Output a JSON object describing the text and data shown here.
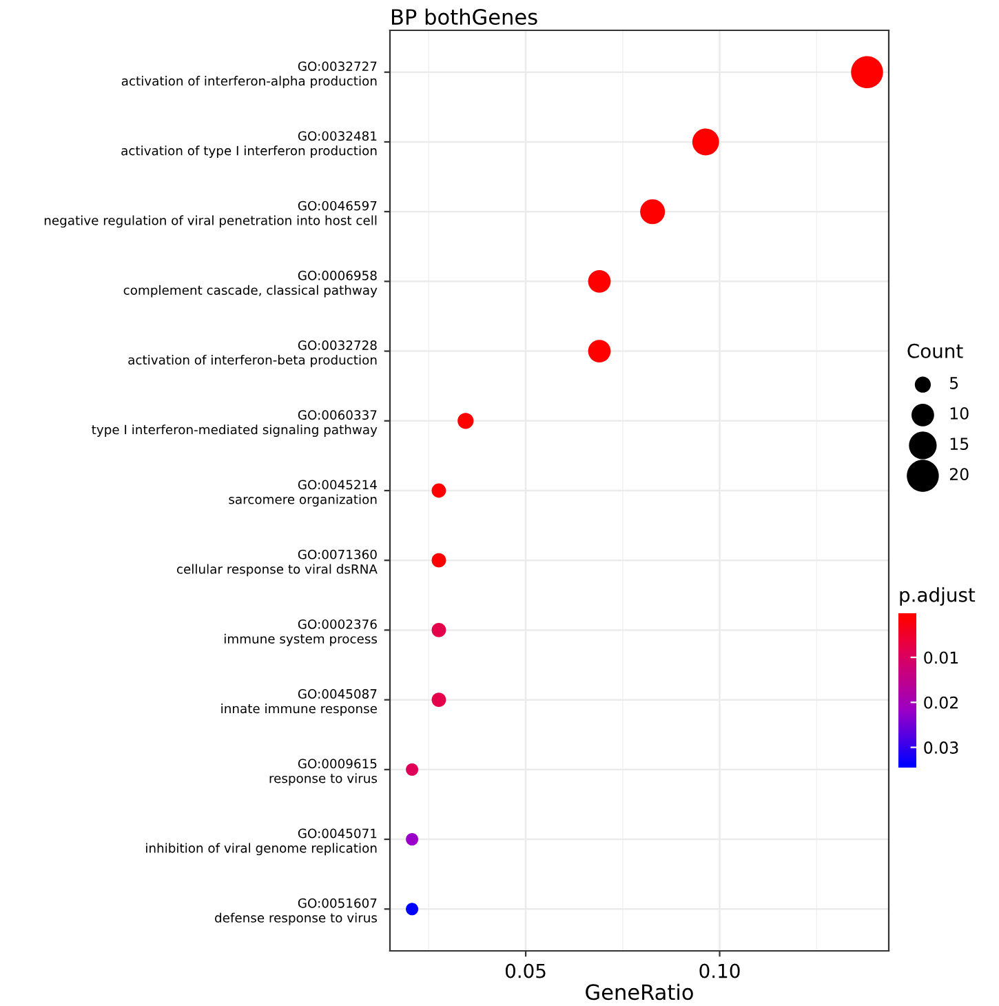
{
  "chart_data": {
    "type": "bubble",
    "orientation": "horizontal",
    "title": "BP bothGenes",
    "xlabel": "GeneRatio",
    "categories": [
      "GO:0032727\nactivation of interferon-alpha production",
      "GO:0032481\nactivation of type I interferon production",
      "GO:0046597\nnegative regulation of viral penetration into host cell",
      "GO:0006958\ncomplement cascade, classical pathway",
      "GO:0032728\nactivation of interferon-beta production",
      "GO:0060337\ntype I interferon-mediated signaling pathway",
      "GO:0045214\nsarcomere organization",
      "GO:0071360\ncellular response to viral dsRNA",
      "GO:0002376\nimmune system process",
      "GO:0045087\ninnate immune response",
      "GO:0009615\nresponse to virus",
      "GO:0045071\ninhibition of viral genome replication",
      "GO:0051607\ndefense response to virus"
    ],
    "values": [
      0.138,
      0.0964,
      0.0827,
      0.069,
      0.069,
      0.0345,
      0.0276,
      0.0276,
      0.0276,
      0.0276,
      0.0207,
      0.0207,
      0.0207
    ],
    "sizes": [
      20,
      14,
      12,
      10,
      10,
      5,
      4,
      4,
      4,
      4,
      3,
      3,
      3
    ],
    "cvalues": [
      0.0003,
      0.0005,
      0.0006,
      0.0008,
      0.0008,
      0.001,
      0.001,
      0.001,
      0.008,
      0.008,
      0.009,
      0.022,
      0.034
    ],
    "size_legend": [
      5,
      10,
      15,
      20
    ],
    "legend_title": "Count",
    "clabel": "p.adjust",
    "clim": [
      0.0002,
      0.0345
    ],
    "cticks": [
      0.01,
      0.02,
      0.03
    ],
    "colors": [
      "#ff0000",
      "#ff0000",
      "#ff0000",
      "#ff0000",
      "#ff0000",
      "#ff0000",
      "#ff0000",
      "#ff0000",
      "#e5004c",
      "#e5004c",
      "#df0058",
      "#9a00c8",
      "#0000ff"
    ],
    "xlim": [
      0.015,
      0.1436
    ],
    "xticks": [
      0.05,
      {
        "value": 0.1,
        "label": "0.10"
      }
    ],
    "grid": true
  }
}
